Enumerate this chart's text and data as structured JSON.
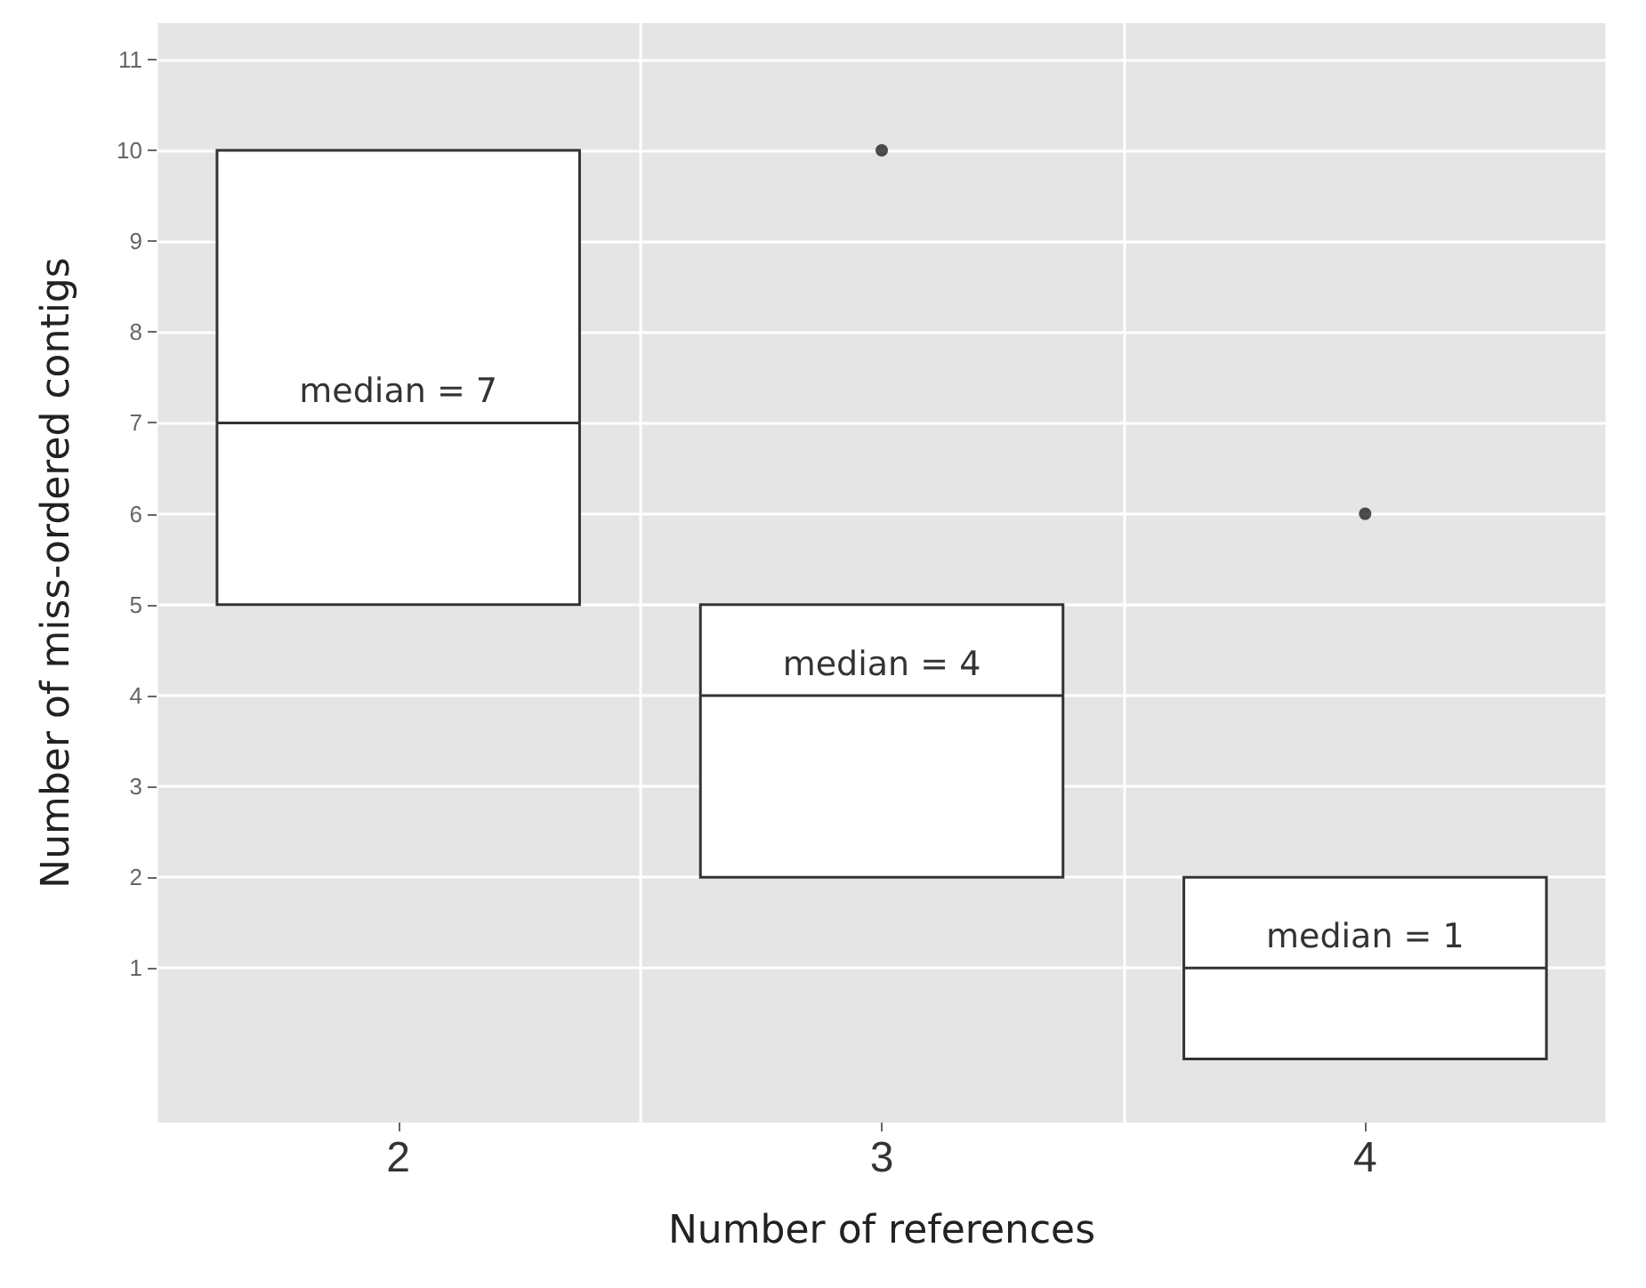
{
  "chart_data": {
    "type": "box",
    "xlabel": "Number of references",
    "ylabel": "Number of miss-ordered contigs",
    "categories": [
      "2",
      "3",
      "4"
    ],
    "boxes": [
      {
        "low": 5,
        "q1": 5,
        "median": 7,
        "q3": 10,
        "high": 10
      },
      {
        "low": 2,
        "q1": 2,
        "median": 4,
        "q3": 5,
        "high": 5,
        "outliers": [
          10
        ]
      },
      {
        "low": 0,
        "q1": 0,
        "median": 1,
        "q3": 2,
        "high": 2,
        "outliers": [
          6
        ]
      }
    ],
    "ylim": [
      -0.7,
      11.4
    ],
    "yticks": [
      1,
      2,
      3,
      4,
      5,
      6,
      7,
      8,
      9,
      10,
      11
    ],
    "grid": true,
    "annotations": [
      {
        "text": "median = 7",
        "x": "2",
        "y": 7
      },
      {
        "text": "median = 4",
        "x": "3",
        "y": 4
      },
      {
        "text": "median = 1",
        "x": "4",
        "y": 1
      }
    ]
  }
}
